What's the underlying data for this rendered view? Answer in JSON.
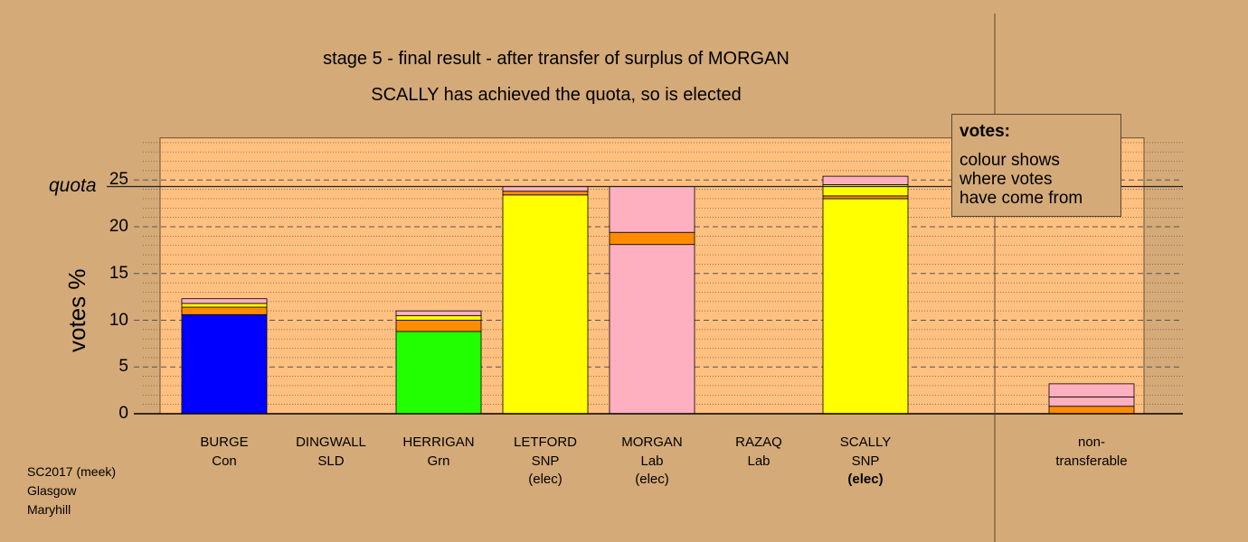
{
  "chart_data": {
    "type": "bar",
    "stacked": true,
    "title": "stage 5 - final result - after transfer of surplus of MORGAN",
    "subtitle": "SCALLY has achieved the quota, so is elected",
    "ylabel": "votes %",
    "ylim": [
      0,
      29.5
    ],
    "yticks": [
      0,
      5,
      10,
      15,
      20,
      25
    ],
    "quota": 24.3,
    "quota_label": "quota",
    "grid": true,
    "legend": {
      "title": "votes:",
      "lines": [
        "colour shows",
        "where votes",
        "have come from"
      ],
      "placement": "top-right"
    },
    "colors": {
      "Con": "#0000ff",
      "SLD": "#ffff00",
      "Grn": "#22ff00",
      "SNP": "#ffff00",
      "Lab": "#ffb0c0",
      "transfer_orange": "#ff8c00",
      "plot_bg": "#ffc080"
    },
    "candidates": [
      {
        "name": "BURGE",
        "party": "Con",
        "status": "",
        "segments": [
          {
            "value": 10.6,
            "color": "#0000ff"
          },
          {
            "value": 0.8,
            "color": "#ff8c00"
          },
          {
            "value": 0.4,
            "color": "#ffff00"
          },
          {
            "value": 0.5,
            "color": "#ffb0c0"
          }
        ]
      },
      {
        "name": "DINGWALL",
        "party": "SLD",
        "status": "",
        "segments": []
      },
      {
        "name": "HERRIGAN",
        "party": "Grn",
        "status": "",
        "segments": [
          {
            "value": 8.8,
            "color": "#22ff00"
          },
          {
            "value": 1.2,
            "color": "#ff8c00"
          },
          {
            "value": 0.5,
            "color": "#ffff00"
          },
          {
            "value": 0.5,
            "color": "#ffb0c0"
          }
        ]
      },
      {
        "name": "LETFORD",
        "party": "SNP",
        "status": "(elec)",
        "segments": [
          {
            "value": 23.4,
            "color": "#ffff00"
          },
          {
            "value": 0.4,
            "color": "#ff8c00"
          },
          {
            "value": 0.5,
            "color": "#ffb0c0"
          }
        ]
      },
      {
        "name": "MORGAN",
        "party": "Lab",
        "status": "(elec)",
        "segments": [
          {
            "value": 18.1,
            "color": "#ffb0c0"
          },
          {
            "value": 1.3,
            "color": "#ff8c00"
          },
          {
            "value": 4.9,
            "color": "#ffb0c0"
          }
        ]
      },
      {
        "name": "RAZAQ",
        "party": "Lab",
        "status": "",
        "segments": []
      },
      {
        "name": "SCALLY",
        "party": "SNP",
        "status": "(elec)",
        "segments": [
          {
            "value": 23.0,
            "color": "#ffff00"
          },
          {
            "value": 0.3,
            "color": "#ff8c00"
          },
          {
            "value": 1.2,
            "color": "#ffff00"
          },
          {
            "value": 0.9,
            "color": "#ffb0c0"
          }
        ]
      }
    ],
    "nontransferable": {
      "label_line1": "non-",
      "label_line2": "transferable",
      "segments": [
        {
          "value": 0.8,
          "color": "#ff8c00"
        },
        {
          "value": 1.0,
          "color": "#ffb0c0"
        },
        {
          "value": 1.4,
          "color": "#ffb0c0"
        }
      ]
    }
  },
  "footer": {
    "line1": "SC2017 (meek)",
    "line2": "Glasgow",
    "line3": "Maryhill"
  }
}
